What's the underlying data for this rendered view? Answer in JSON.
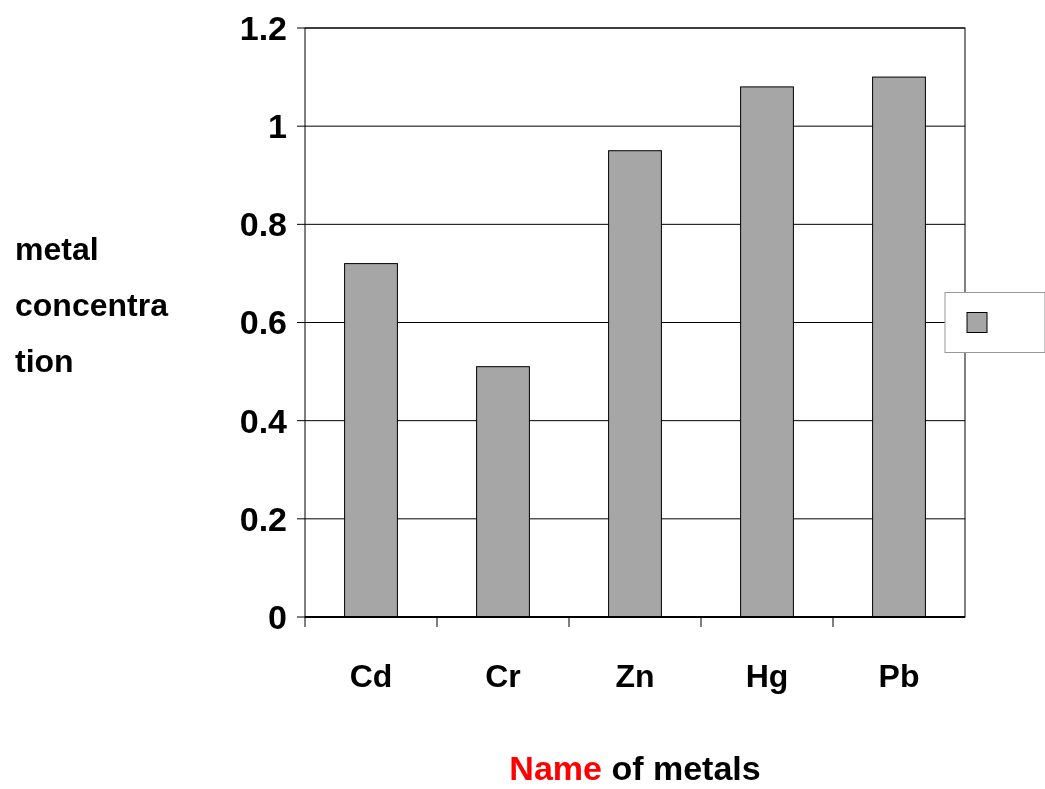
{
  "chart_data": {
    "type": "bar",
    "xlabel": "Name of metals",
    "ylabel": "metal concentration",
    "categories": [
      "Cd",
      "Cr",
      "Zn",
      "Hg",
      "Pb"
    ],
    "series": [
      {
        "color": "#a6a6a6",
        "values": [
          0.72,
          0.51,
          0.95,
          1.08,
          1.1
        ]
      }
    ],
    "ylim": [
      0,
      1.2
    ],
    "yticks": [
      0,
      0.2,
      0.4,
      0.6,
      0.8,
      1,
      1.2
    ],
    "grid": "y"
  }
}
